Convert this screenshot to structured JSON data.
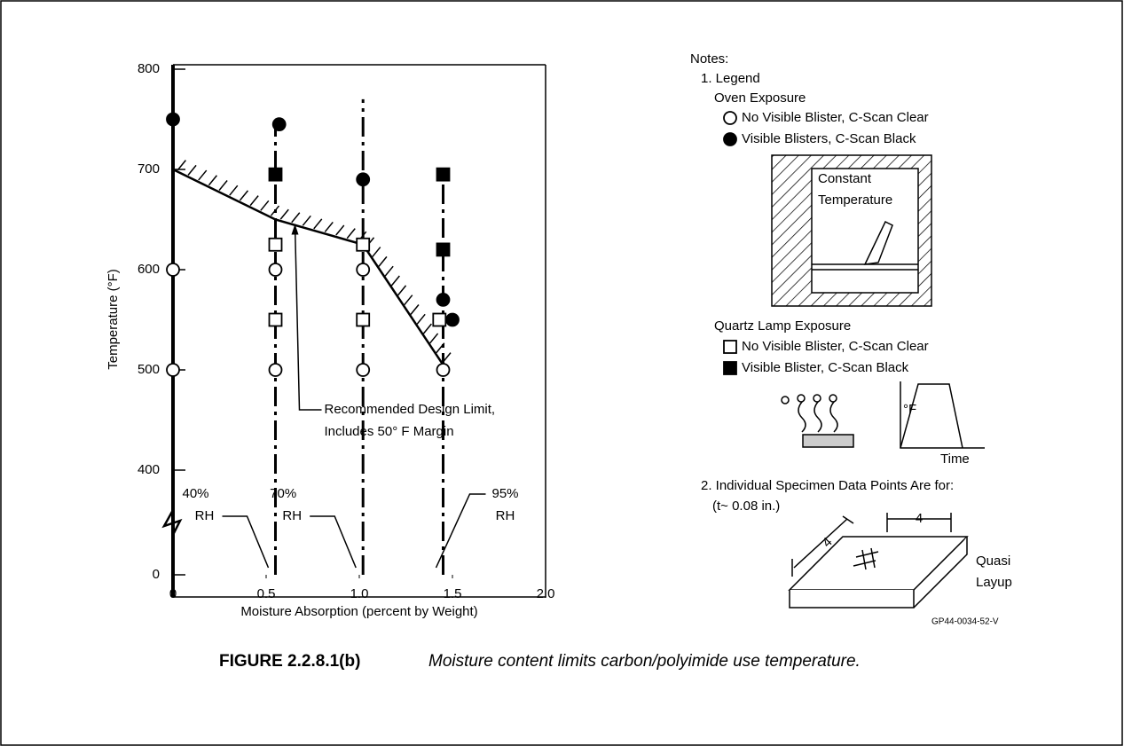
{
  "chart_data": {
    "type": "scatter",
    "ylabel": "Temperature (°F)",
    "xlabel": "Moisture Absorption (percent by Weight)",
    "xlim": [
      0,
      2.0
    ],
    "xticks": [
      0,
      0.5,
      {
        "value": 1.0,
        "label": "1.0"
      },
      1.5,
      {
        "value": 2.0,
        "label": "2.0"
      }
    ],
    "ylim": [
      0,
      800
    ],
    "yticks": [
      0,
      400,
      500,
      600,
      700,
      800
    ],
    "axis_break": true,
    "series": [
      {
        "name": "No Visible Blister, C-Scan Clear",
        "marker": "circle",
        "filled": false,
        "color": "#000000",
        "x": [
          0,
          0,
          0.55,
          0.55,
          1.02,
          1.02,
          1.45
        ],
        "values": [
          600,
          500,
          600,
          500,
          600,
          500,
          500
        ]
      },
      {
        "name": "Visible Blisters, C-Scan Black",
        "marker": "circle",
        "filled": true,
        "color": "#000000",
        "x": [
          0,
          0.57,
          1.02,
          1.45,
          1.5
        ],
        "values": [
          750,
          745,
          690,
          570,
          550
        ]
      },
      {
        "name": "No Visible Blister, C-Scan Clear",
        "marker": "square",
        "filled": false,
        "color": "#000000",
        "x": [
          0.55,
          0.55,
          1.02,
          1.02,
          1.43
        ],
        "values": [
          625,
          550,
          625,
          550,
          550
        ]
      },
      {
        "name": "Visible Blister, C-Scan Black",
        "marker": "square",
        "filled": true,
        "color": "#000000",
        "x": [
          0.55,
          1.45,
          1.45
        ],
        "values": [
          695,
          695,
          620
        ]
      }
    ],
    "design_limit": {
      "x": [
        0,
        0.55,
        1.02,
        1.45
      ],
      "values": [
        700,
        650,
        625,
        505
      ]
    },
    "design_limit_label": [
      "Recommended Design Limit,",
      "Includes 50° F Margin"
    ],
    "rh_lines": [
      {
        "x": 0.55,
        "top": 745,
        "label": [
          "40%",
          "RH"
        ]
      },
      {
        "x": 1.02,
        "top": 770,
        "label": [
          "70%",
          "RH"
        ]
      },
      {
        "x": 1.45,
        "top": 695,
        "label": [
          "95%",
          "RH"
        ]
      }
    ],
    "notes": {
      "title": "Notes:",
      "item1": "1. Legend",
      "oven": "Oven Exposure",
      "oven_box": [
        "Constant",
        "Temperature"
      ],
      "quartz": "Quartz Lamp Exposure",
      "quartz_axis": [
        "°F",
        "Time"
      ],
      "item2": "2. Individual Specimen Data Points Are for:",
      "thickness": "(t~ 0.08 in.)",
      "dims": [
        "4",
        "4"
      ],
      "layup": [
        "Quasi",
        "Layup"
      ],
      "code": "GP44-0034-52-V"
    },
    "caption": {
      "number": "FIGURE 2.2.8.1(b)",
      "text": "Moisture content limits carbon/polyimide use temperature."
    }
  }
}
